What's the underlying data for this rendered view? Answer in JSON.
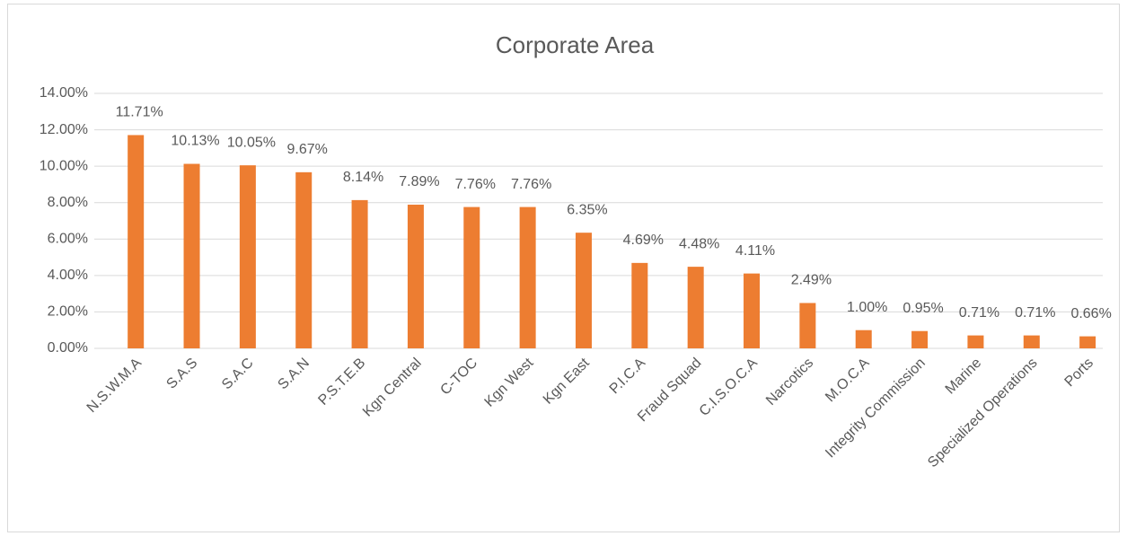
{
  "chart_data": {
    "type": "bar",
    "title": "Corporate Area",
    "categories": [
      "N.S.W.M.A",
      "S.A.S",
      "S.A.C",
      "S.A.N",
      "P.S.T.E.B",
      "Kgn Central",
      "C-TOC",
      "Kgn West",
      "Kgn East",
      "P.I.C.A",
      "Fraud Squad",
      "C.I.S.O.C.A",
      "Narcotics",
      "M.O.C.A",
      "Integrity Commission",
      "Marine",
      "Specialized Operations",
      "Ports"
    ],
    "values": [
      11.71,
      10.13,
      10.05,
      9.67,
      8.14,
      7.89,
      7.76,
      7.76,
      6.35,
      4.69,
      4.48,
      4.11,
      2.49,
      1.0,
      0.95,
      0.71,
      0.71,
      0.66
    ],
    "value_labels": [
      "11.71%",
      "10.13%",
      "10.05%",
      "9.67%",
      "8.14%",
      "7.89%",
      "7.76%",
      "7.76%",
      "6.35%",
      "4.69%",
      "4.48%",
      "4.11%",
      "2.49%",
      "1.00%",
      "0.95%",
      "0.71%",
      "0.71%",
      "0.66%"
    ],
    "color": "#ed7d31",
    "ylim": [
      0,
      14
    ],
    "yticks": [
      {
        "value": 0,
        "label": "0.00%"
      },
      {
        "value": 2,
        "label": "2.00%"
      },
      {
        "value": 4,
        "label": "4.00%"
      },
      {
        "value": 6,
        "label": "6.00%"
      },
      {
        "value": 8,
        "label": "8.00%"
      },
      {
        "value": 10,
        "label": "10.00%"
      },
      {
        "value": 12,
        "label": "12.00%"
      },
      {
        "value": 14,
        "label": "14.00%"
      }
    ],
    "grid": true
  }
}
